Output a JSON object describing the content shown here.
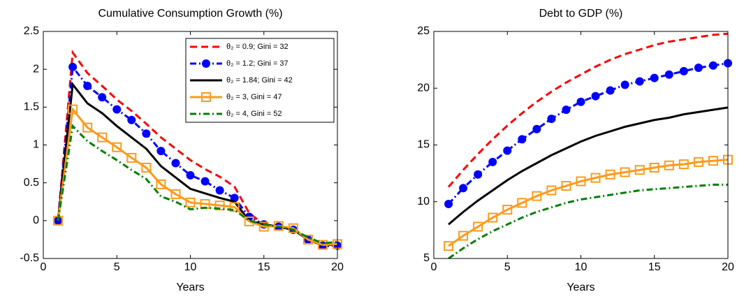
{
  "chart_data": [
    {
      "type": "line",
      "title": "Cumulative Consumption Growth (%)",
      "xlabel": "Years",
      "x": [
        1,
        2,
        3,
        4,
        5,
        6,
        7,
        8,
        9,
        10,
        11,
        12,
        13,
        14,
        15,
        16,
        17,
        18,
        19,
        20
      ],
      "xlim": [
        0,
        20
      ],
      "xticks": [
        0,
        5,
        10,
        15,
        20
      ],
      "ylim": [
        -0.5,
        2.5
      ],
      "yticks": [
        -0.5,
        0,
        0.5,
        1,
        1.5,
        2,
        2.5
      ],
      "legend": "northeast",
      "series": [
        {
          "name": "θ₂ = 0.9; Gini = 32",
          "color": "#ff0000",
          "dash": "dashed",
          "marker": "none",
          "values": [
            0,
            2.22,
            1.95,
            1.78,
            1.6,
            1.45,
            1.28,
            1.1,
            0.95,
            0.8,
            0.68,
            0.58,
            0.45,
            0.1,
            -0.05,
            -0.08,
            -0.12,
            -0.25,
            -0.33,
            -0.35
          ]
        },
        {
          "name": "θ₂ = 1.2; Gini = 37",
          "color": "#0000ff",
          "dash": "dashdot",
          "marker": "circle",
          "values": [
            0,
            2.03,
            1.78,
            1.63,
            1.47,
            1.33,
            1.15,
            0.92,
            0.76,
            0.6,
            0.52,
            0.4,
            0.3,
            0.05,
            -0.05,
            -0.08,
            -0.12,
            -0.25,
            -0.33,
            -0.33
          ]
        },
        {
          "name": "θ₂ = 1.84; Gini = 42",
          "color": "#000000",
          "dash": "solid",
          "marker": "none",
          "values": [
            0,
            1.8,
            1.55,
            1.42,
            1.25,
            1.1,
            0.95,
            0.72,
            0.57,
            0.42,
            0.36,
            0.3,
            0.25,
            0,
            -0.05,
            -0.08,
            -0.12,
            -0.25,
            -0.32,
            -0.32
          ]
        },
        {
          "name": "θ₂ = 3, Gini = 47",
          "color": "#ff9a1a",
          "dash": "solid",
          "marker": "square",
          "values": [
            0,
            1.47,
            1.23,
            1.1,
            0.97,
            0.83,
            0.7,
            0.48,
            0.35,
            0.24,
            0.22,
            0.2,
            0.18,
            -0.01,
            -0.08,
            -0.07,
            -0.1,
            -0.25,
            -0.32,
            -0.31
          ]
        },
        {
          "name": "θ₂ = 4, Gini = 52",
          "color": "#008000",
          "dash": "dashdot",
          "marker": "none",
          "values": [
            0,
            1.25,
            1.05,
            0.92,
            0.8,
            0.67,
            0.55,
            0.32,
            0.25,
            0.15,
            0.17,
            0.16,
            0.14,
            0,
            -0.05,
            -0.08,
            -0.12,
            -0.22,
            -0.3,
            -0.28
          ]
        }
      ]
    },
    {
      "type": "line",
      "title": "Debt to GDP (%)",
      "xlabel": "Years",
      "x": [
        1,
        2,
        3,
        4,
        5,
        6,
        7,
        8,
        9,
        10,
        11,
        12,
        13,
        14,
        15,
        16,
        17,
        18,
        19,
        20
      ],
      "xlim": [
        0,
        20
      ],
      "xticks": [
        0,
        5,
        10,
        15,
        20
      ],
      "ylim": [
        5,
        25
      ],
      "yticks": [
        5,
        10,
        15,
        20,
        25
      ],
      "series": [
        {
          "color": "#ff0000",
          "dash": "dashed",
          "marker": "none",
          "values": [
            11.3,
            12.8,
            14.2,
            15.5,
            16.7,
            17.8,
            18.8,
            19.7,
            20.5,
            21.2,
            21.9,
            22.5,
            23,
            23.4,
            23.8,
            24.1,
            24.3,
            24.5,
            24.7,
            24.8
          ]
        },
        {
          "color": "#0000ff",
          "dash": "dashdot",
          "marker": "circle",
          "values": [
            9.8,
            11.2,
            12.4,
            13.5,
            14.5,
            15.5,
            16.4,
            17.3,
            18.1,
            18.8,
            19.3,
            19.8,
            20.3,
            20.6,
            20.9,
            21.2,
            21.5,
            21.8,
            22,
            22.2
          ]
        },
        {
          "color": "#000000",
          "dash": "solid",
          "marker": "none",
          "values": [
            8,
            9.1,
            10.1,
            11,
            11.9,
            12.7,
            13.4,
            14.1,
            14.7,
            15.3,
            15.8,
            16.2,
            16.6,
            16.9,
            17.2,
            17.4,
            17.7,
            17.9,
            18.1,
            18.3
          ]
        },
        {
          "color": "#ff9a1a",
          "dash": "solid",
          "marker": "square",
          "values": [
            6.1,
            7,
            7.8,
            8.6,
            9.3,
            9.9,
            10.5,
            11,
            11.4,
            11.8,
            12.1,
            12.4,
            12.6,
            12.8,
            13,
            13.2,
            13.3,
            13.5,
            13.6,
            13.7
          ]
        },
        {
          "color": "#008000",
          "dash": "dashdot",
          "marker": "none",
          "values": [
            5,
            5.9,
            6.7,
            7.4,
            8,
            8.6,
            9.1,
            9.5,
            9.9,
            10.2,
            10.4,
            10.6,
            10.8,
            11,
            11.1,
            11.2,
            11.3,
            11.4,
            11.5,
            11.5
          ]
        }
      ]
    }
  ]
}
